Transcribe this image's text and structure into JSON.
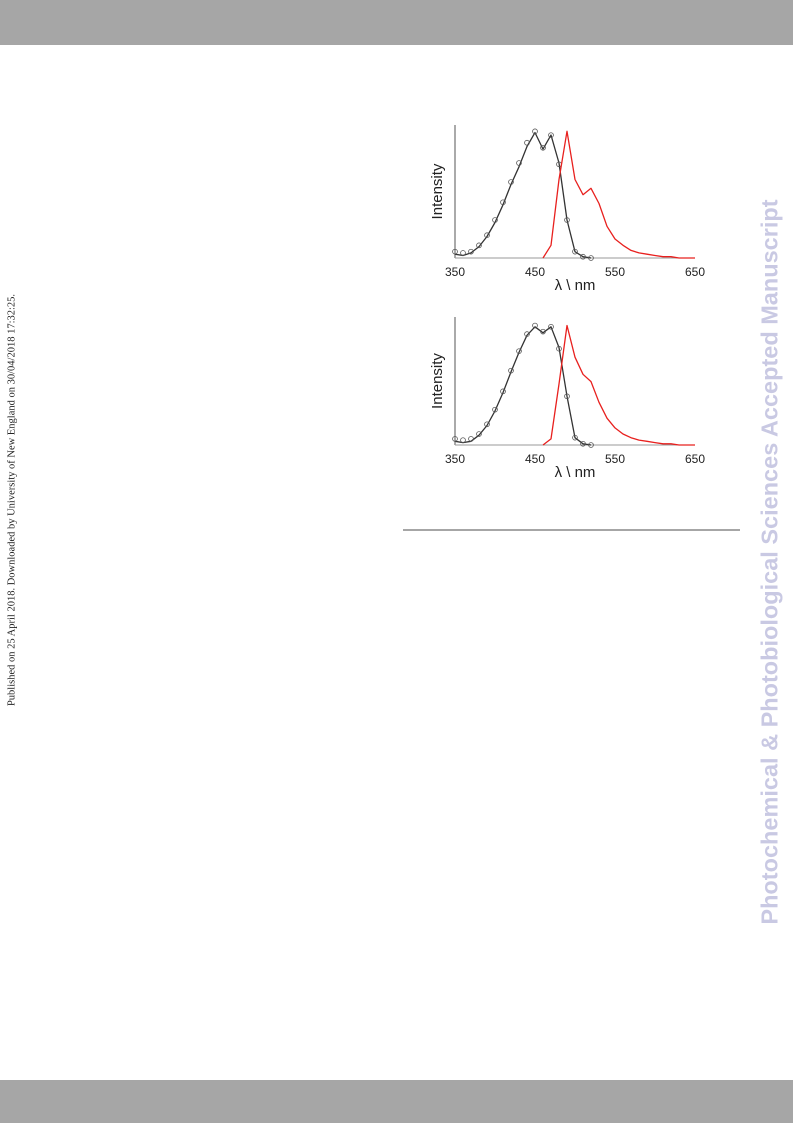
{
  "side_note": "Published on 25 April 2018. Downloaded by University of New England on 30/04/2018 17:32:25.",
  "watermark": "Photochemical & Photobiological Sciences Accepted Manuscript",
  "chart_data": [
    {
      "type": "line",
      "xlabel": "λ \\ nm",
      "ylabel": "Intensity",
      "x": [
        350,
        360,
        370,
        380,
        390,
        400,
        410,
        420,
        430,
        440,
        450,
        460,
        470,
        480,
        490,
        500,
        510,
        520,
        530,
        540,
        550,
        560,
        570,
        580,
        590,
        600,
        610,
        620,
        630,
        640,
        650
      ],
      "xlim": [
        350,
        650
      ],
      "xticks": [
        350,
        450,
        550,
        650
      ],
      "ylim": [
        0,
        1.05
      ],
      "series": [
        {
          "color": "#333333",
          "values": [
            0.03,
            0.02,
            0.04,
            0.09,
            0.17,
            0.28,
            0.42,
            0.58,
            0.72,
            0.88,
            0.99,
            0.86,
            0.97,
            0.75,
            0.3,
            0.05,
            0.01,
            0,
            null,
            null,
            null,
            null,
            null,
            null,
            null,
            null,
            null,
            null,
            null,
            null,
            null
          ]
        },
        {
          "color": "#555555",
          "marker": "o",
          "values": [
            0.05,
            0.04,
            0.05,
            0.1,
            0.18,
            0.3,
            0.44,
            0.6,
            0.75,
            0.91,
            1.0,
            0.87,
            0.97,
            0.74,
            0.3,
            0.05,
            0.01,
            0,
            null,
            null,
            null,
            null,
            null,
            null,
            null,
            null,
            null,
            null,
            null,
            null,
            null
          ]
        },
        {
          "color": "#e8201e",
          "values": [
            null,
            null,
            null,
            null,
            null,
            null,
            null,
            null,
            null,
            null,
            null,
            0,
            0.1,
            0.62,
            1.0,
            0.62,
            0.5,
            0.55,
            0.43,
            0.25,
            0.15,
            0.1,
            0.06,
            0.04,
            0.03,
            0.02,
            0.01,
            0.01,
            0,
            0,
            0
          ]
        }
      ]
    },
    {
      "type": "line",
      "xlabel": "λ \\ nm",
      "ylabel": "Intensity",
      "x": [
        350,
        360,
        370,
        380,
        390,
        400,
        410,
        420,
        430,
        440,
        450,
        460,
        470,
        480,
        490,
        500,
        510,
        520,
        530,
        540,
        550,
        560,
        570,
        580,
        590,
        600,
        610,
        620,
        630,
        640,
        650
      ],
      "xlim": [
        350,
        650
      ],
      "xticks": [
        350,
        450,
        550,
        650
      ],
      "ylim": [
        0,
        1.05
      ],
      "series": [
        {
          "color": "#333333",
          "values": [
            0.03,
            0.02,
            0.03,
            0.08,
            0.16,
            0.28,
            0.43,
            0.6,
            0.76,
            0.9,
            0.97,
            0.92,
            0.97,
            0.8,
            0.4,
            0.06,
            0.01,
            0,
            null,
            null,
            null,
            null,
            null,
            null,
            null,
            null,
            null,
            null,
            null,
            null,
            null
          ]
        },
        {
          "color": "#555555",
          "marker": "o",
          "values": [
            0.05,
            0.04,
            0.05,
            0.09,
            0.17,
            0.29,
            0.44,
            0.61,
            0.77,
            0.91,
            0.98,
            0.93,
            0.97,
            0.79,
            0.4,
            0.06,
            0.01,
            0,
            null,
            null,
            null,
            null,
            null,
            null,
            null,
            null,
            null,
            null,
            null,
            null,
            null
          ]
        },
        {
          "color": "#e8201e",
          "values": [
            null,
            null,
            null,
            null,
            null,
            null,
            null,
            null,
            null,
            null,
            null,
            0,
            0.05,
            0.5,
            0.98,
            0.72,
            0.58,
            0.52,
            0.35,
            0.22,
            0.14,
            0.09,
            0.06,
            0.04,
            0.03,
            0.02,
            0.01,
            0.01,
            0,
            0,
            0
          ]
        }
      ]
    }
  ]
}
